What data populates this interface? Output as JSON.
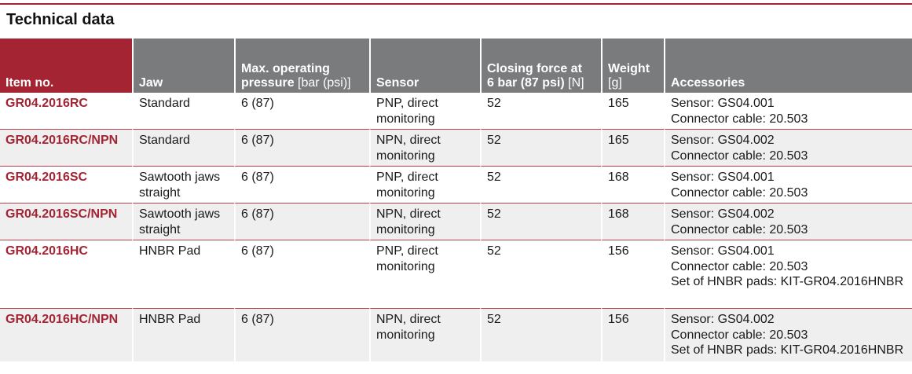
{
  "title": "Technical data",
  "table": {
    "headers": [
      {
        "label": "Item no.",
        "unit": ""
      },
      {
        "label": "Jaw",
        "unit": ""
      },
      {
        "label": "Max. operating pressure",
        "unit": "[bar (psi)]"
      },
      {
        "label": "Sensor",
        "unit": ""
      },
      {
        "label": "Closing force at 6 bar (87 psi)",
        "unit": "[N]"
      },
      {
        "label": "Weight",
        "unit": "[g]"
      },
      {
        "label": "Accessories",
        "unit": ""
      }
    ],
    "rows": [
      {
        "item": "GR04.2016RC",
        "jaw": "Standard",
        "pressure": "6 (87)",
        "sensor": "PNP, direct monitoring",
        "force": "52",
        "weight": "165",
        "accessories": [
          "Sensor: GS04.001",
          "Connector cable: 20.503"
        ]
      },
      {
        "item": "GR04.2016RC/NPN",
        "jaw": "Standard",
        "pressure": "6 (87)",
        "sensor": "NPN, direct monitoring",
        "force": "52",
        "weight": "165",
        "accessories": [
          "Sensor: GS04.002",
          "Connector cable: 20.503"
        ]
      },
      {
        "item": "GR04.2016SC",
        "jaw": "Sawtooth jaws straight",
        "pressure": "6 (87)",
        "sensor": "PNP, direct monitoring",
        "force": "52",
        "weight": "168",
        "accessories": [
          "Sensor: GS04.001",
          "Connector cable: 20.503"
        ]
      },
      {
        "item": "GR04.2016SC/NPN",
        "jaw": "Sawtooth jaws straight",
        "pressure": "6 (87)",
        "sensor": "NPN, direct monitoring",
        "force": "52",
        "weight": "168",
        "accessories": [
          "Sensor: GS04.002",
          "Connector cable: 20.503"
        ]
      },
      {
        "item": "GR04.2016HC",
        "jaw": "HNBR Pad",
        "pressure": "6 (87)",
        "sensor": "PNP, direct monitoring",
        "force": "52",
        "weight": "156",
        "accessories": [
          "Sensor: GS04.001",
          "Connector cable: 20.503",
          "Set of HNBR pads: KIT-GR04.2016HNBR"
        ]
      },
      {
        "item": "GR04.2016HC/NPN",
        "jaw": "HNBR Pad",
        "pressure": "6 (87)",
        "sensor": "NPN, direct monitoring",
        "force": "52",
        "weight": "156",
        "accessories": [
          "Sensor: GS04.002",
          "Connector cable: 20.503",
          "Set of HNBR pads: KIT-GR04.2016HNBR"
        ]
      }
    ]
  },
  "colors": {
    "accent": "#a52434",
    "header_gray": "#7a7b7d",
    "row_shade": "#efefef"
  }
}
